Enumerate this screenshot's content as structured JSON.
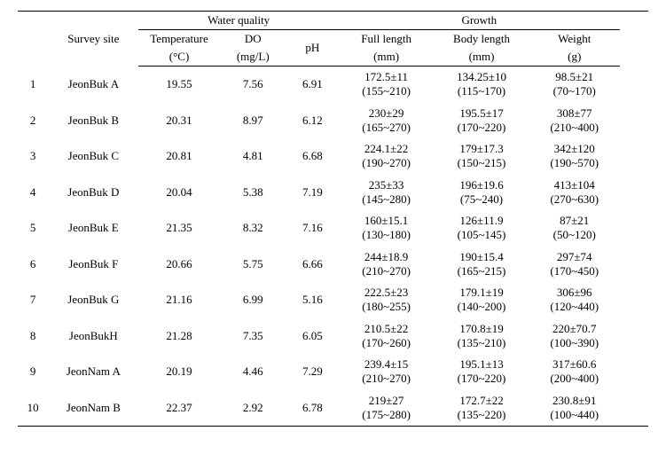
{
  "header": {
    "survey_site": "Survey site",
    "group_wq": "Water quality",
    "group_growth": "Growth",
    "temp": "Temperature",
    "temp_unit": "(°C)",
    "do": "DO",
    "do_unit": "(mg/L)",
    "ph": "pH",
    "full_len": "Full length",
    "full_len_unit": "(mm)",
    "body_len": "Body length",
    "body_len_unit": "(mm)",
    "weight": "Weight",
    "weight_unit": "(g)"
  },
  "rows": [
    {
      "idx": "1",
      "site": "JeonBuk A",
      "temp": "19.55",
      "do": "7.56",
      "ph": "6.91",
      "fl1": "172.5±11",
      "fl2": "(155~210)",
      "bl1": "134.25±10",
      "bl2": "(115~170)",
      "wt1": "98.5±21",
      "wt2": "(70~170)"
    },
    {
      "idx": "2",
      "site": "JeonBuk B",
      "temp": "20.31",
      "do": "8.97",
      "ph": "6.12",
      "fl1": "230±29",
      "fl2": "(165~270)",
      "bl1": "195.5±17",
      "bl2": "(170~220)",
      "wt1": "308±77",
      "wt2": "(210~400)"
    },
    {
      "idx": "3",
      "site": "JeonBuk C",
      "temp": "20.81",
      "do": "4.81",
      "ph": "6.68",
      "fl1": "224.1±22",
      "fl2": "(190~270)",
      "bl1": "179±17.3",
      "bl2": "(150~215)",
      "wt1": "342±120",
      "wt2": "(190~570)"
    },
    {
      "idx": "4",
      "site": "JeonBuk D",
      "temp": "20.04",
      "do": "5.38",
      "ph": "7.19",
      "fl1": "235±33",
      "fl2": "(145~280)",
      "bl1": "196±19.6",
      "bl2": "(75~240)",
      "wt1": "413±104",
      "wt2": "(270~630)"
    },
    {
      "idx": "5",
      "site": "JeonBuk E",
      "temp": "21.35",
      "do": "8.32",
      "ph": "7.16",
      "fl1": "160±15.1",
      "fl2": "(130~180)",
      "bl1": "126±11.9",
      "bl2": "(105~145)",
      "wt1": "87±21",
      "wt2": "(50~120)"
    },
    {
      "idx": "6",
      "site": "JeonBuk F",
      "temp": "20.66",
      "do": "5.75",
      "ph": "6.66",
      "fl1": "244±18.9",
      "fl2": "(210~270)",
      "bl1": "190±15.4",
      "bl2": "(165~215)",
      "wt1": "297±74",
      "wt2": "(170~450)"
    },
    {
      "idx": "7",
      "site": "JeonBuk G",
      "temp": "21.16",
      "do": "6.99",
      "ph": "5.16",
      "fl1": "222.5±23",
      "fl2": "(180~255)",
      "bl1": "179.1±19",
      "bl2": "(140~200)",
      "wt1": "306±96",
      "wt2": "(120~440)"
    },
    {
      "idx": "8",
      "site": "JeonBukH",
      "temp": "21.28",
      "do": "7.35",
      "ph": "6.05",
      "fl1": "210.5±22",
      "fl2": "(170~260)",
      "bl1": "170.8±19",
      "bl2": "(135~210)",
      "wt1": "220±70.7",
      "wt2": "(100~390)"
    },
    {
      "idx": "9",
      "site": "JeonNam A",
      "temp": "20.19",
      "do": "4.46",
      "ph": "7.29",
      "fl1": "239.4±15",
      "fl2": "(210~270)",
      "bl1": "195.1±13",
      "bl2": "(170~220)",
      "wt1": "317±60.6",
      "wt2": "(200~400)"
    },
    {
      "idx": "10",
      "site": "JeonNam B",
      "temp": "22.37",
      "do": "2.92",
      "ph": "6.78",
      "fl1": "219±27",
      "fl2": "(175~280)",
      "bl1": "172.7±22",
      "bl2": "(135~220)",
      "wt1": "230.8±91",
      "wt2": "(100~440)"
    }
  ]
}
